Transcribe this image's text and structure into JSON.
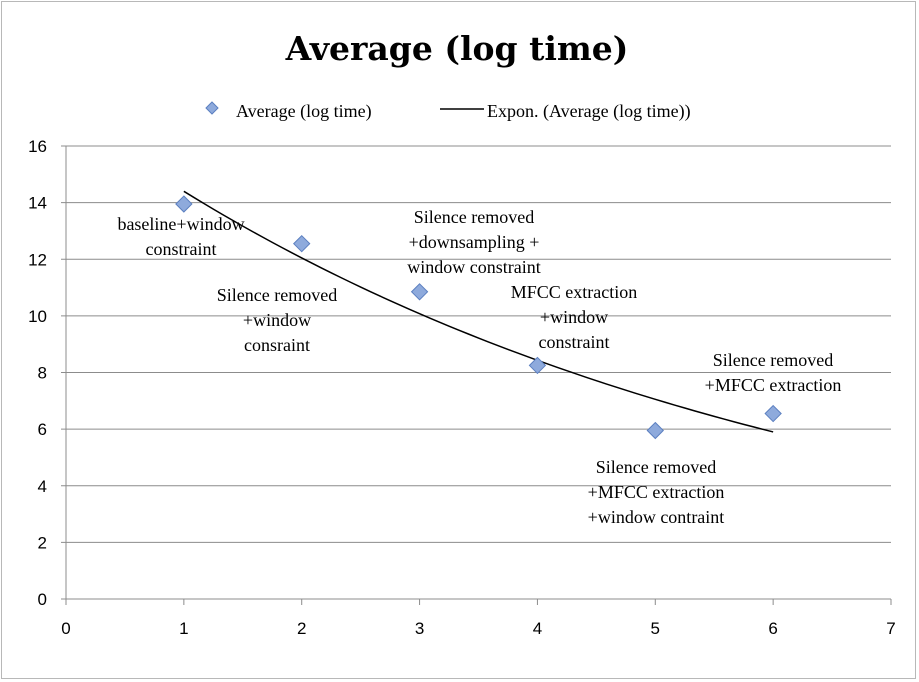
{
  "chart_data": {
    "type": "scatter",
    "title": "Average (log time)",
    "xlabel": "",
    "ylabel": "",
    "xlim": [
      0,
      7
    ],
    "ylim": [
      0,
      16
    ],
    "xticks": [
      0,
      1,
      2,
      3,
      4,
      5,
      6,
      7
    ],
    "yticks": [
      0,
      2,
      4,
      6,
      8,
      10,
      12,
      14,
      16
    ],
    "grid": "horizontal",
    "legend_position": "top",
    "series": [
      {
        "name": "Average (log time)",
        "marker": "diamond",
        "color": "#8eaadc",
        "x": [
          1,
          2,
          3,
          4,
          5,
          6
        ],
        "y": [
          13.95,
          12.55,
          10.85,
          8.25,
          5.95,
          6.55
        ]
      }
    ],
    "trendline": {
      "name": "Expon. (Average (log time))",
      "type": "exponential",
      "color": "#000000",
      "x_range": [
        1,
        6
      ],
      "y_start": 14.4,
      "y_end": 5.9
    },
    "annotations": [
      {
        "x": 1,
        "lines": [
          "baseline+window",
          "constraint"
        ]
      },
      {
        "x": 2,
        "lines": [
          "Silence removed",
          "+window",
          "consraint"
        ]
      },
      {
        "x": 3,
        "lines": [
          "Silence removed",
          "+downsampling +",
          "window constraint"
        ]
      },
      {
        "x": 4,
        "lines": [
          "MFCC extraction",
          "+window",
          "constraint"
        ]
      },
      {
        "x": 5,
        "lines": [
          "Silence removed",
          "+MFCC extraction",
          "+window contraint"
        ]
      },
      {
        "x": 6,
        "lines": [
          "Silence removed",
          "+MFCC extraction"
        ]
      }
    ]
  }
}
